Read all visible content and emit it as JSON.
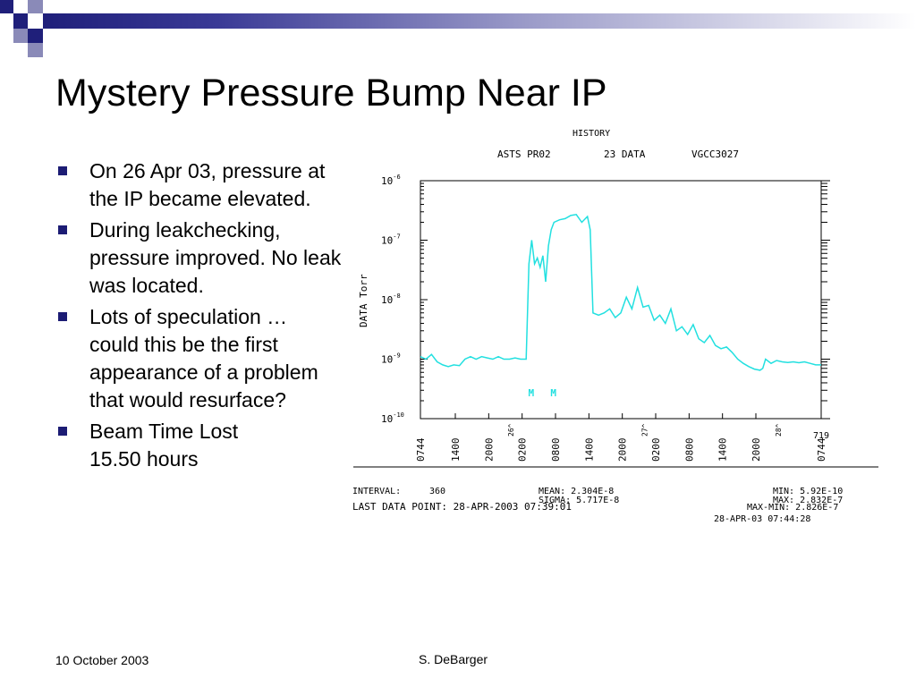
{
  "slide": {
    "title": "Mystery Pressure Bump Near IP",
    "bullets": [
      "On 26 Apr 03, pressure at the IP became elevated.",
      "During leakchecking, pressure improved. No leak was located.",
      "Lots of speculation … could this be the first appearance of a problem that would resurface?",
      "Beam Time Lost\n        15.50 hours"
    ],
    "footer_date": "10 October 2003",
    "footer_author": "S. DeBarger"
  },
  "colors": {
    "bullet": "#1c1c74",
    "deco_dark": "#1f1f7a",
    "deco_mid": "#8a8ab8",
    "trace": "#22e0e0"
  },
  "chart_data": {
    "type": "line",
    "title": "HISTORY",
    "subtitle_left": "ASTS PR02",
    "subtitle_mid": "23 DATA",
    "subtitle_right": "VGCC3027",
    "ylabel": "DATA Torr",
    "y_scale": "log",
    "ylim": [
      1e-10,
      1e-06
    ],
    "y_ticks": [
      {
        "base": "10",
        "exp": "-6",
        "value": 1e-06
      },
      {
        "base": "10",
        "exp": "-7",
        "value": 1e-07
      },
      {
        "base": "10",
        "exp": "-8",
        "value": 1e-08
      },
      {
        "base": "10",
        "exp": "-9",
        "value": 1e-09
      },
      {
        "base": "10",
        "exp": "-10",
        "value": 1e-10
      }
    ],
    "x_unit": "hour of day (cumulative from 25-Apr 07:44)",
    "xlim": [
      0,
      72
    ],
    "x_ticks": [
      {
        "label": "0744",
        "hour": 0
      },
      {
        "label": "1400",
        "hour": 6.27
      },
      {
        "label": "2000",
        "hour": 12.27
      },
      {
        "label": "0200",
        "hour": 18.27
      },
      {
        "label": "0800",
        "hour": 24.27
      },
      {
        "label": "1400",
        "hour": 30.27
      },
      {
        "label": "2000",
        "hour": 36.27
      },
      {
        "label": "0200",
        "hour": 42.27
      },
      {
        "label": "0800",
        "hour": 48.27
      },
      {
        "label": "1400",
        "hour": 54.27
      },
      {
        "label": "2000",
        "hour": 60.27
      },
      {
        "label": "0744",
        "hour": 72
      }
    ],
    "day_markers": [
      {
        "label": "26^",
        "hour": 16.27
      },
      {
        "label": "27^",
        "hour": 40.27
      },
      {
        "label": "28^",
        "hour": 64.27
      }
    ],
    "end_label": "719",
    "event_markers": [
      {
        "label": "M",
        "hour": 20.0
      },
      {
        "label": "M",
        "hour": 24.0
      }
    ],
    "series": [
      {
        "x": [
          0,
          1,
          2,
          3,
          4,
          5,
          6,
          7,
          8,
          9,
          10,
          11,
          12,
          13,
          14,
          15,
          16,
          17,
          18,
          19,
          19.5,
          20,
          20.5,
          21,
          21.5,
          22,
          22.5,
          23,
          23.5,
          24,
          25,
          26,
          27,
          28,
          29,
          30,
          30.5,
          31,
          32,
          33,
          34,
          35,
          36,
          37,
          38,
          39,
          40,
          41,
          42,
          43,
          44,
          45,
          46,
          47,
          48,
          49,
          50,
          51,
          52,
          53,
          54,
          55,
          56,
          57,
          58,
          59,
          60,
          61,
          61.5,
          62,
          63,
          64,
          65,
          66,
          67,
          68,
          69,
          70,
          71,
          72
        ],
        "y": [
          1.1e-09,
          1e-09,
          1.2e-09,
          9e-10,
          8e-10,
          7.5e-10,
          8e-10,
          7.8e-10,
          1e-09,
          1.1e-09,
          1e-09,
          1.1e-09,
          1.05e-09,
          1e-09,
          1.1e-09,
          1e-09,
          1e-09,
          1.05e-09,
          1e-09,
          1e-09,
          4e-08,
          1e-07,
          4e-08,
          5e-08,
          3.5e-08,
          5.5e-08,
          2e-08,
          8e-08,
          1.5e-07,
          2e-07,
          2.2e-07,
          2.3e-07,
          2.6e-07,
          2.7e-07,
          2e-07,
          2.5e-07,
          1.5e-07,
          6e-09,
          5.5e-09,
          6e-09,
          7e-09,
          5e-09,
          6e-09,
          1.1e-08,
          7e-09,
          1.6e-08,
          7.5e-09,
          8e-09,
          4.5e-09,
          5.5e-09,
          4e-09,
          7e-09,
          3e-09,
          3.5e-09,
          2.6e-09,
          3.8e-09,
          2.2e-09,
          1.9e-09,
          2.5e-09,
          1.7e-09,
          1.5e-09,
          1.6e-09,
          1.3e-09,
          1e-09,
          8.5e-10,
          7.5e-10,
          6.8e-10,
          6.5e-10,
          7e-10,
          1e-09,
          8.5e-10,
          9.5e-10,
          9e-10,
          8.8e-10,
          9e-10,
          8.7e-10,
          9e-10,
          8.5e-10,
          8e-10,
          8e-10
        ]
      }
    ],
    "stats": {
      "interval_label": "INTERVAL:",
      "interval_value": "360",
      "mean": "MEAN: 2.304E-8",
      "sigma": "SIGMA: 5.717E-8",
      "min": "MIN: 5.92E-10",
      "max": "MAX: 2.832E-7",
      "maxmin": "MAX-MIN: 2.826E-7",
      "last_point": "LAST DATA POINT: 28-APR-2003 07:39:01",
      "timestamp": "28-APR-03 07:44:28"
    }
  }
}
